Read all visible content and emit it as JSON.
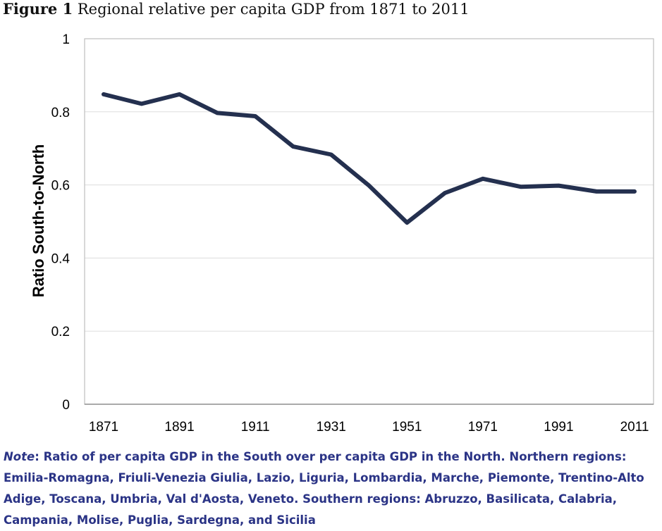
{
  "figure": {
    "label": "Figure 1",
    "title": "Regional relative per capita GDP from 1871 to 2011"
  },
  "chart_data": {
    "type": "line",
    "title": "Regional relative per capita GDP from 1871 to 2011",
    "xlabel": "",
    "ylabel": "Ratio South-to-North",
    "xlim": [
      1871,
      2011
    ],
    "ylim": [
      0,
      1
    ],
    "x_ticks": [
      "1871",
      "1891",
      "1911",
      "1931",
      "1951",
      "1971",
      "1991",
      "2011"
    ],
    "y_ticks": [
      "0",
      "0.2",
      "0.4",
      "0.6",
      "0.8",
      "1"
    ],
    "grid": true,
    "series": [
      {
        "name": "Ratio South-to-North",
        "color": "#24304f",
        "x": [
          1871,
          1881,
          1891,
          1901,
          1911,
          1921,
          1931,
          1941,
          1951,
          1961,
          1971,
          1981,
          1991,
          2001,
          2011
        ],
        "values": [
          0.848,
          0.822,
          0.848,
          0.797,
          0.788,
          0.705,
          0.683,
          0.598,
          0.497,
          0.578,
          0.617,
          0.595,
          0.598,
          0.582,
          0.582
        ]
      }
    ]
  },
  "note": {
    "label": "Note",
    "text": ": Ratio of per capita GDP in the South over per capita GDP in the North. Northern regions: Emilia-Romagna, Friuli-Venezia Giulia, Lazio, Liguria, Lombardia, Marche, Piemonte, Trentino-Alto Adige, Toscana, Umbria, Val d'Aosta, Veneto. Southern regions: Abruzzo, Basilicata, Calabria, Campania, Molise, Puglia, Sardegna, and Sicilia"
  },
  "colors": {
    "line": "#24304f",
    "note_text": "#2b3486",
    "frame": "#bfbfbf",
    "grid": "#dddddd"
  }
}
